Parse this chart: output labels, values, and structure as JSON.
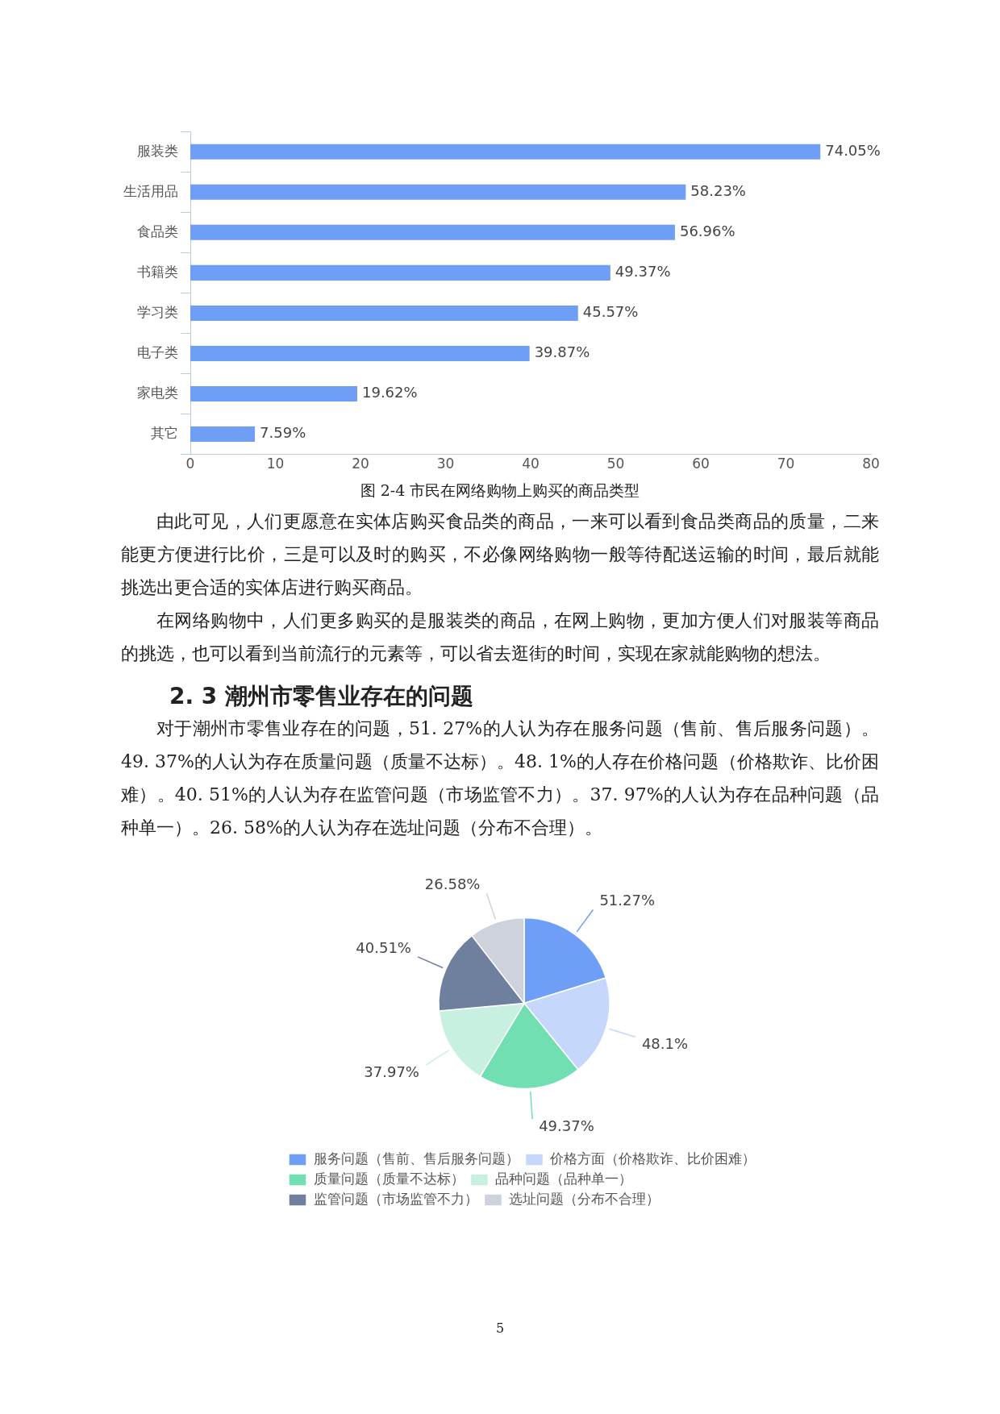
{
  "chart_data": [
    {
      "type": "bar",
      "orientation": "horizontal",
      "title": "图 2-4 市民在网络购物上购买的商品类型",
      "categories": [
        "服装类",
        "生活用品",
        "食品类",
        "书籍类",
        "学习类",
        "电子类",
        "家电类",
        "其它"
      ],
      "values": [
        74.05,
        58.23,
        56.96,
        49.37,
        45.57,
        39.87,
        19.62,
        7.59
      ],
      "value_labels": [
        "74.05%",
        "58.23%",
        "56.96%",
        "49.37%",
        "45.57%",
        "39.87%",
        "19.62%",
        "7.59%"
      ],
      "color": "#6e9ef5",
      "xlim": [
        0,
        80
      ],
      "xticks": [
        0,
        10,
        20,
        30,
        40,
        50,
        60,
        70,
        80
      ],
      "grid": false,
      "legend": false,
      "annotations": [
        "由此可见，人们更愿意在实体店购买食品类的商品，一来可以看到食品类商品的质量，二来能更方便进行比价，三是可以及时的购买，不必像网络购物一般等待配送运输的时间，最后就能挑选出更合适的实体店进行购买商品。",
        "在网络购物中，人们更多购买的是服装类的商品，在网上购物，更加方便人们对服装等商品的挑选，也可以看到当前流行的元素等，可以省去逛街的时间，实现在家就能购物的想法。"
      ]
    },
    {
      "type": "pie",
      "title": "2. 3 潮州市零售业存在的问题",
      "categories": [
        "服务问题（售前、售后服务问题）",
        "价格方面（价格欺诈、比价困难）",
        "质量问题（质量不达标）",
        "品种问题（品种单一）",
        "监管问题（市场监管不力）",
        "选址问题（分布不合理）"
      ],
      "values": [
        51.27,
        48.1,
        49.37,
        37.97,
        40.51,
        26.58
      ],
      "value_labels": [
        "51.27%",
        "48.1%",
        "49.37%",
        "37.97%",
        "40.51%",
        "26.58%"
      ],
      "colors": [
        "#6e9ef5",
        "#c5d7fb",
        "#72dfb3",
        "#c7f0e1",
        "#6f7f9e",
        "#cdd2dc"
      ],
      "legend": "bottom",
      "annotations": [
        "对于潮州市零售业存在的问题，51. 27%的人认为存在服务问题（售前、售后服务问题）。49. 37%的人认为存在质量问题（质量不达标）。48. 1%的人存在价格问题（价格欺诈、比价困难）。40. 51%的人认为存在监管问题（市场监管不力）。37. 97%的人认为存在品种问题（品种单一）。26. 58%的人认为存在选址问题（分布不合理）。",
        "5"
      ]
    }
  ]
}
